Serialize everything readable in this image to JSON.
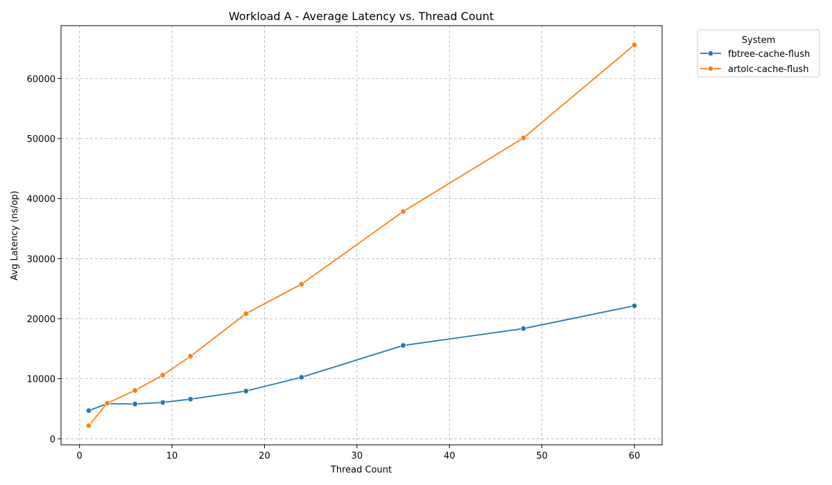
{
  "chart_data": {
    "type": "line",
    "title": "Workload A - Average Latency vs. Thread Count",
    "xlabel": "Thread Count",
    "ylabel": "Avg Latency (ns/op)",
    "xlim": [
      -2,
      63
    ],
    "ylim": [
      -1000,
      68800
    ],
    "xticks": [
      0,
      10,
      20,
      30,
      40,
      50,
      60
    ],
    "yticks": [
      0,
      10000,
      20000,
      30000,
      40000,
      50000,
      60000
    ],
    "grid": true,
    "legend": {
      "title": "System",
      "placement": "outside-top-right"
    },
    "x": [
      1,
      3,
      6,
      9,
      12,
      18,
      24,
      35,
      48,
      60
    ],
    "series": [
      {
        "name": "fbtree-cache-flush",
        "color": "#1f77b4",
        "values": [
          4700,
          5850,
          5800,
          6050,
          6600,
          7950,
          10250,
          15550,
          18350,
          22150
        ]
      },
      {
        "name": "artolc-cache-flush",
        "color": "#ff7f0e",
        "values": [
          2200,
          5950,
          8050,
          10600,
          13750,
          20850,
          25750,
          37850,
          50100,
          65600
        ]
      }
    ]
  }
}
